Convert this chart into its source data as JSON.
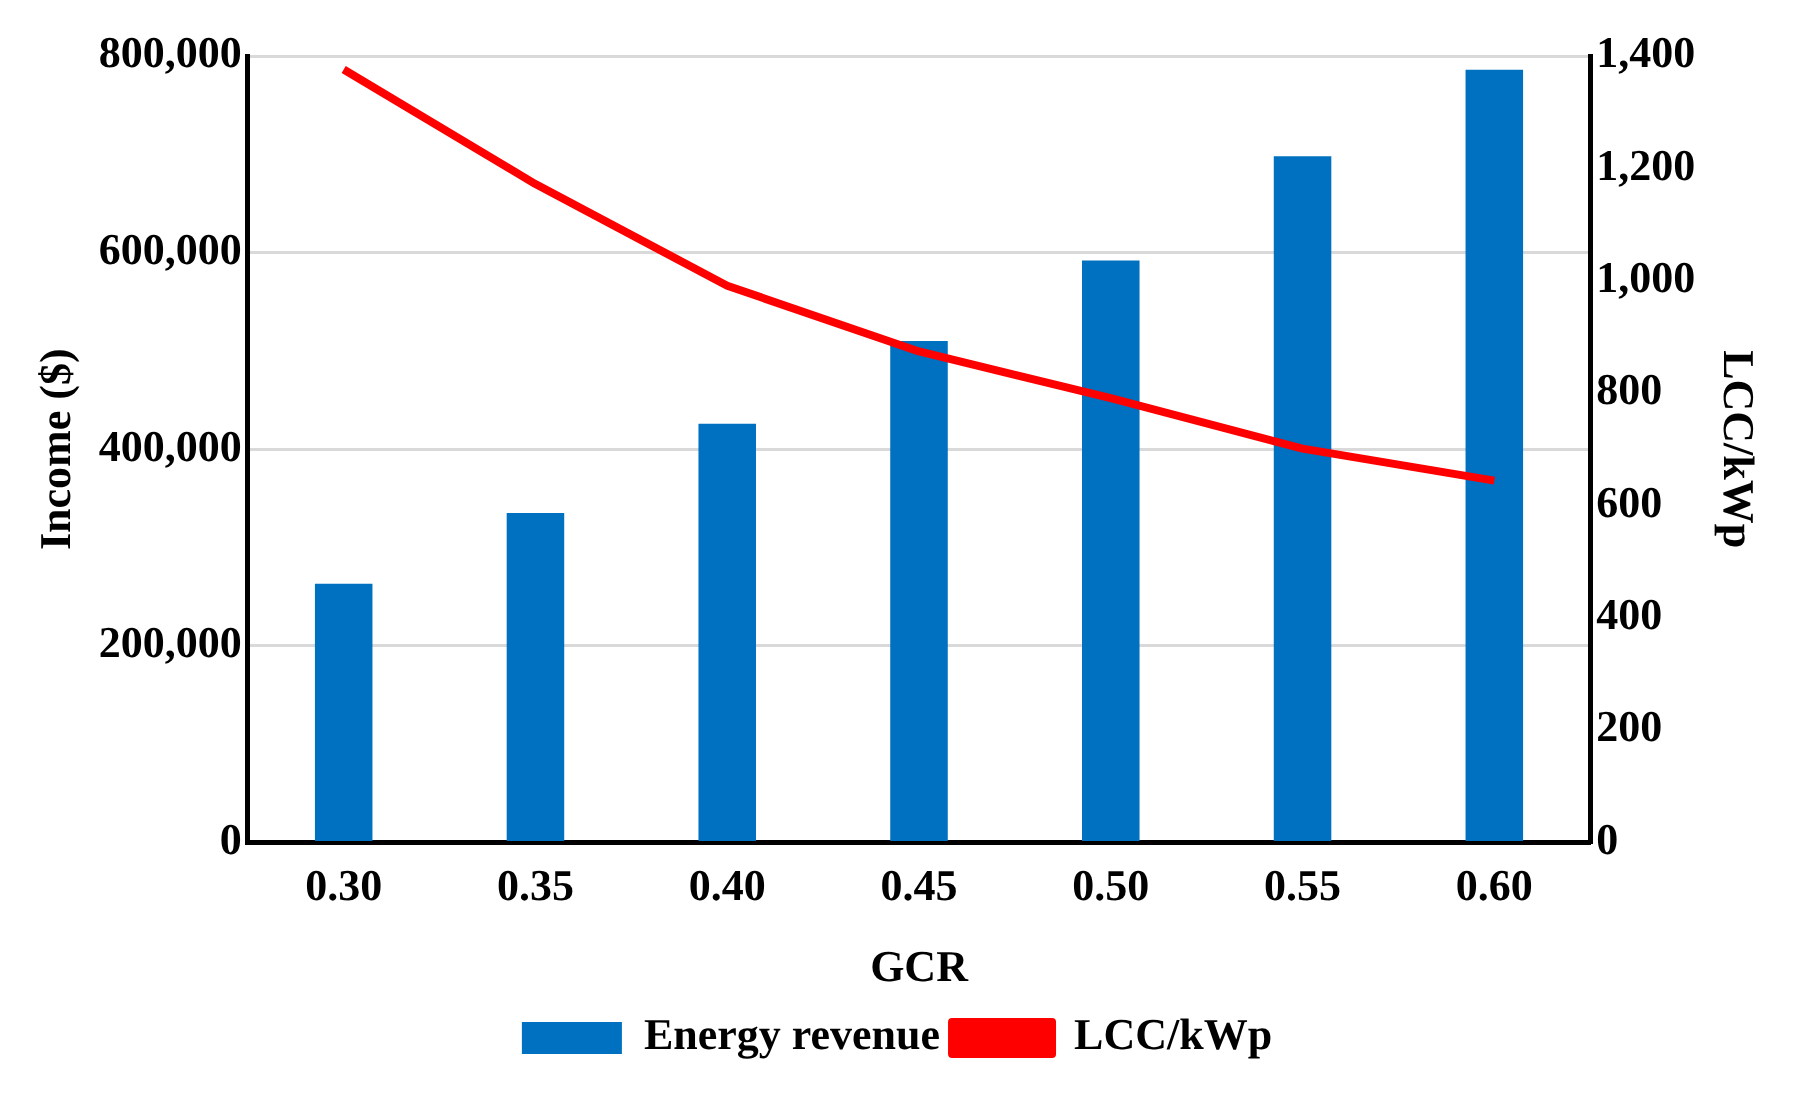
{
  "chart_data": {
    "type": "bar",
    "xlabel": "GCR",
    "ylabel": "Income ($)",
    "y2label": "LCC/kWp",
    "categories": [
      "0.30",
      "0.35",
      "0.40",
      "0.45",
      "0.50",
      "0.55",
      "0.60"
    ],
    "series": [
      {
        "name": "Energy revenue",
        "color": "#0070c0",
        "values": [
          263000,
          335000,
          426000,
          510000,
          592000,
          698000,
          786000
        ]
      },
      {
        "name": "LCC/kWp",
        "type": "line",
        "axis": "y2",
        "color": "#ff0000",
        "values": [
          1376,
          1172,
          991,
          874,
          791,
          701,
          644
        ]
      }
    ],
    "ylim": [
      0,
      800000
    ],
    "yticks": [
      {
        "value": 0,
        "label": "0"
      },
      {
        "value": 200000,
        "label": "200,000"
      },
      {
        "value": 400000,
        "label": "400,000"
      },
      {
        "value": 600000,
        "label": "600,000"
      },
      {
        "value": 800000,
        "label": "800,000"
      }
    ],
    "y2lim": [
      0,
      1400
    ],
    "y2ticks": [
      {
        "value": 0,
        "label": "0"
      },
      {
        "value": 200,
        "label": "200"
      },
      {
        "value": 400,
        "label": "400"
      },
      {
        "value": 600,
        "label": "600"
      },
      {
        "value": 800,
        "label": "800"
      },
      {
        "value": 1000,
        "label": "1,000"
      },
      {
        "value": 1200,
        "label": "1,200"
      },
      {
        "value": 1400,
        "label": "1,400"
      }
    ],
    "grid": "y",
    "legend": "bottom",
    "marker": "none",
    "line_style": "solid"
  }
}
